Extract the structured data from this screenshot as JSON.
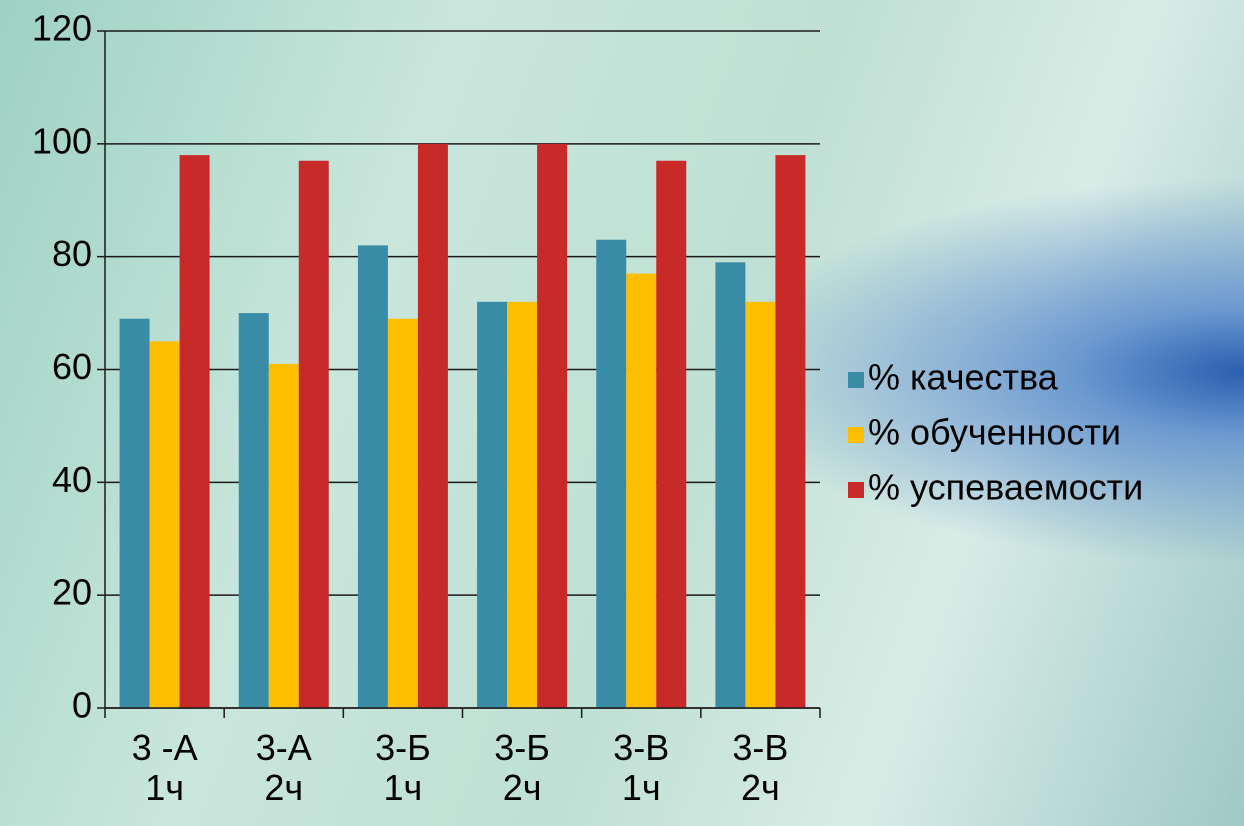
{
  "chart_data": {
    "type": "bar",
    "categories": [
      "3 -А\n1ч",
      "3-А\n2ч",
      "3-Б\n1ч",
      "3-Б\n2ч",
      "3-В\n1ч",
      "3-В\n2ч"
    ],
    "series": [
      {
        "name": "% качества",
        "color": "#3a8ca6",
        "values": [
          69,
          70,
          82,
          72,
          83,
          79
        ]
      },
      {
        "name": "% обученности",
        "color": "#ffbf00",
        "values": [
          65,
          61,
          69,
          72,
          77,
          72
        ]
      },
      {
        "name": "% успеваемости",
        "color": "#c82a2a",
        "values": [
          98,
          97,
          100,
          100,
          97,
          98
        ]
      }
    ],
    "ylim": [
      0,
      120
    ],
    "yticks": [
      0,
      20,
      40,
      60,
      80,
      100,
      120
    ],
    "grid": true,
    "legend": "right"
  }
}
